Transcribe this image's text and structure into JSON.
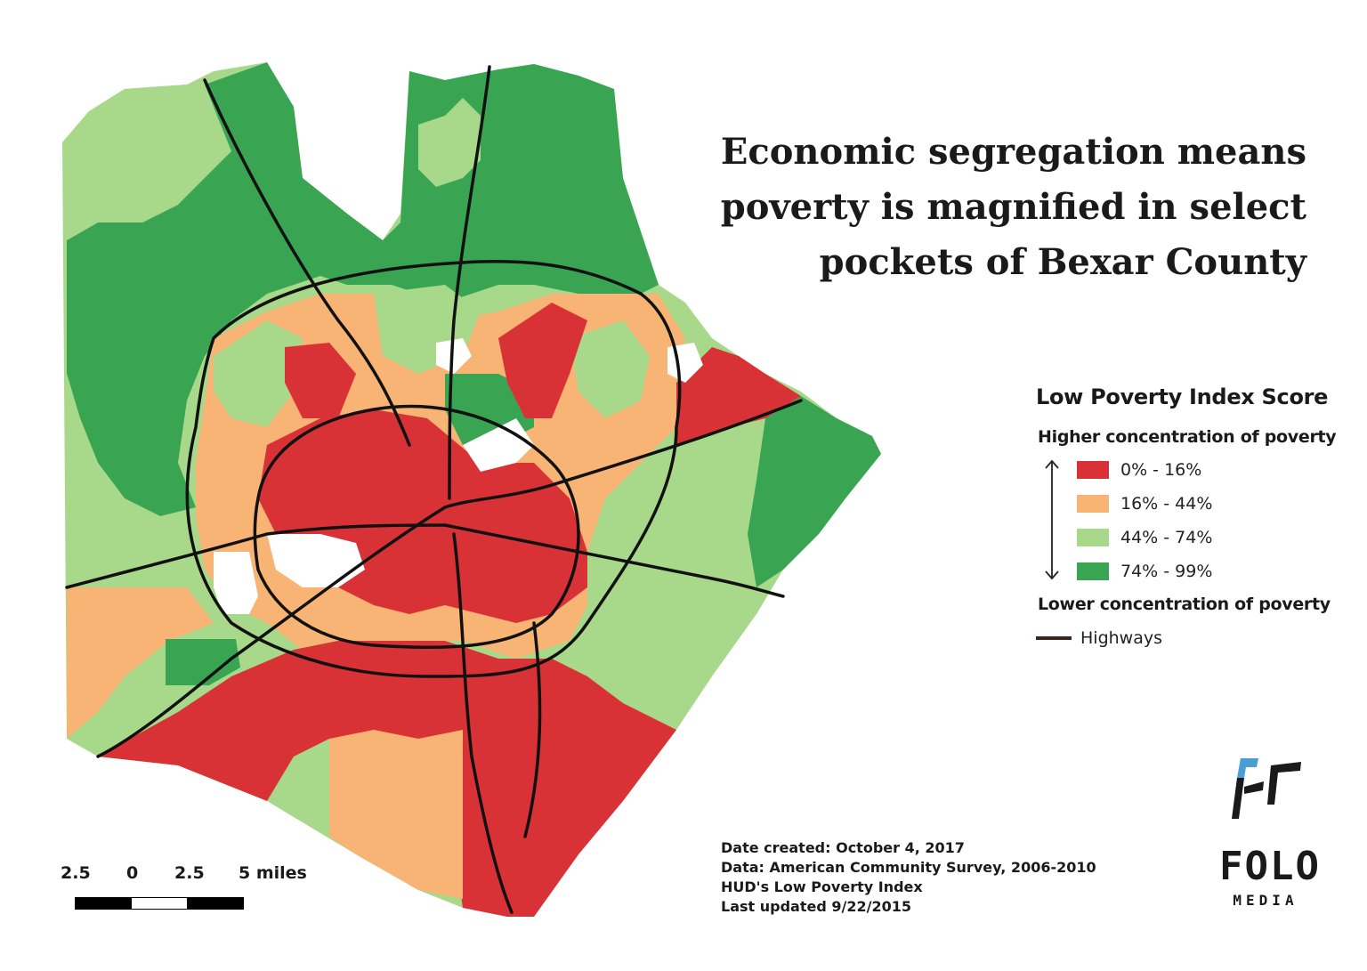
{
  "map": {
    "title_lines": [
      "Economic segregation means",
      "poverty is magnified in select",
      "pockets of Bexar County"
    ]
  },
  "legend": {
    "title": "Low Poverty Index Score",
    "higher_label": "Higher concentration of poverty",
    "lower_label": "Lower concentration of poverty",
    "classes": [
      {
        "label": "0% - 16%",
        "color": "#d93236"
      },
      {
        "label": "16% - 44%",
        "color": "#f7b475"
      },
      {
        "label": "44% - 74%",
        "color": "#a8d98a"
      },
      {
        "label": "74% - 99%",
        "color": "#39a553"
      }
    ],
    "highways_label": "Highways",
    "highways_color": "#3b2418"
  },
  "credits": {
    "date": "Date created: October 4, 2017",
    "data": "Data: American Community Survey, 2006-2010",
    "index": "HUD's Low Poverty Index",
    "updated": "Last updated 9/22/2015"
  },
  "scale_bar": {
    "labels": [
      "2.5",
      "0",
      "2.5",
      "5 miles"
    ]
  },
  "logo": {
    "name": "FOLO",
    "sub": "MEDIA",
    "accent": "#4a9ed6"
  },
  "colors": {
    "background": "#ffffff",
    "road": "#111111"
  }
}
